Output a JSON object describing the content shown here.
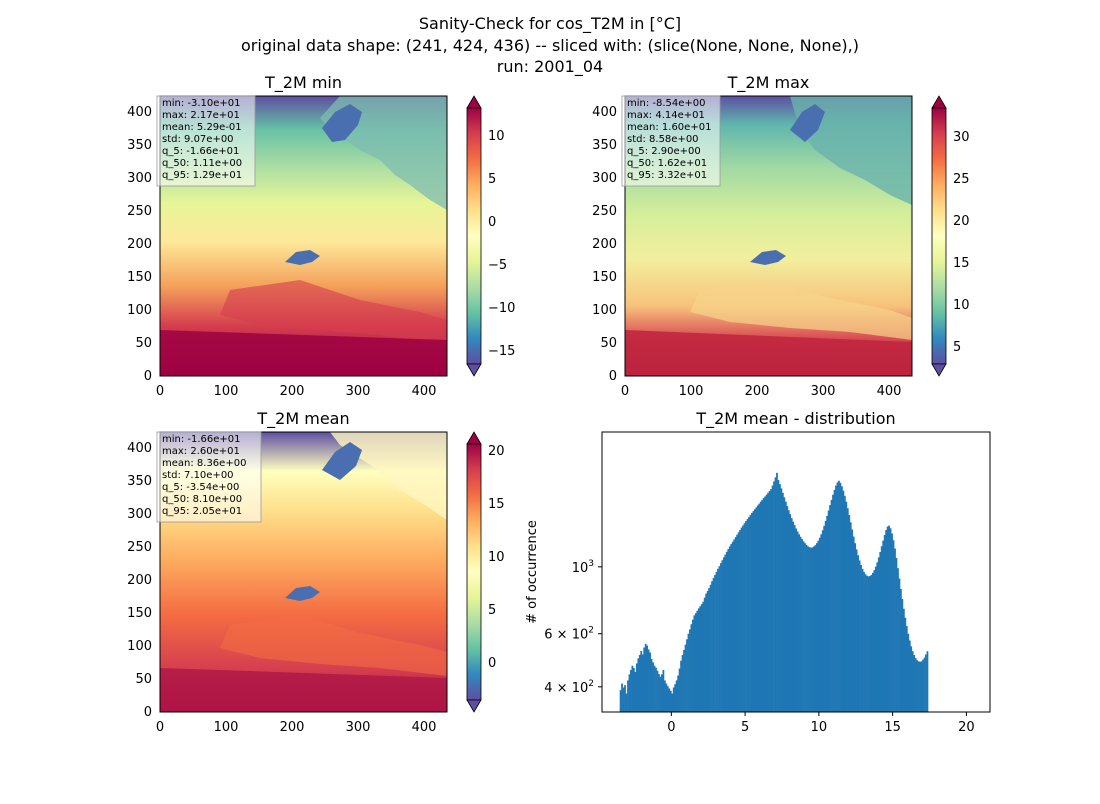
{
  "figure": {
    "suptitle": [
      "Sanity-Check for cos_T2M in [°C]",
      "original data shape: (241, 424, 436) -- sliced with: (slice(None, None, None),)",
      "run: 2001_04"
    ]
  },
  "chart_data": [
    {
      "type": "heatmap",
      "title": "T_2M min",
      "colormap": "Spectral_r",
      "xlim": [
        0,
        436
      ],
      "ylim": [
        0,
        424
      ],
      "x_ticks": [
        "0",
        "100",
        "200",
        "300",
        "400"
      ],
      "y_ticks": [
        "0",
        "50",
        "100",
        "150",
        "200",
        "250",
        "300",
        "350",
        "400"
      ],
      "colorbar_range": [
        -17.5,
        13.5
      ],
      "colorbar_ticks": [
        "−15",
        "−10",
        "−5",
        "0",
        "5",
        "10"
      ],
      "stats": [
        "min: -3.10e+01",
        "max: 2.17e+01",
        "mean: 5.29e-01",
        "std: 9.07e+00",
        "q_5: -1.66e+01",
        "q_50: 1.11e+00",
        "q_95: 1.29e+01"
      ]
    },
    {
      "type": "heatmap",
      "title": "T_2M max",
      "colormap": "Spectral_r",
      "xlim": [
        0,
        436
      ],
      "ylim": [
        0,
        424
      ],
      "x_ticks": [
        "0",
        "100",
        "200",
        "300",
        "400"
      ],
      "y_ticks": [
        "0",
        "50",
        "100",
        "150",
        "200",
        "250",
        "300",
        "350",
        "400"
      ],
      "colorbar_range": [
        2,
        34
      ],
      "colorbar_ticks": [
        "5",
        "10",
        "15",
        "20",
        "25",
        "30"
      ],
      "stats": [
        "min: -8.54e+00",
        "max: 4.14e+01",
        "mean: 1.60e+01",
        "std: 8.58e+00",
        "q_5: 2.90e+00",
        "q_50: 1.62e+01",
        "q_95: 3.32e+01"
      ]
    },
    {
      "type": "heatmap",
      "title": "T_2M mean",
      "colormap": "Spectral_r",
      "xlim": [
        0,
        436
      ],
      "ylim": [
        0,
        424
      ],
      "x_ticks": [
        "0",
        "100",
        "200",
        "300",
        "400"
      ],
      "y_ticks": [
        "0",
        "50",
        "100",
        "150",
        "200",
        "250",
        "300",
        "350",
        "400"
      ],
      "colorbar_range": [
        -3.5,
        21
      ],
      "colorbar_ticks": [
        "0",
        "5",
        "10",
        "15",
        "20"
      ],
      "stats": [
        "min: -1.66e+01",
        "max: 2.60e+01",
        "mean: 8.36e+00",
        "std: 7.10e+00",
        "q_5: -3.54e+00",
        "q_50: 8.10e+00",
        "q_95: 2.05e+01"
      ]
    },
    {
      "type": "bar",
      "title": "T_2M mean - distribution",
      "xlabel": "",
      "ylabel": "# of occurrence",
      "yscale": "log",
      "color": "#1f77b4",
      "xlim": [
        -4.7,
        21.6
      ],
      "ylim": [
        330,
        2800
      ],
      "x_ticks": [
        0,
        5,
        10,
        15,
        20
      ],
      "y_ticks": [
        {
          "value": 1000,
          "base": "10",
          "exp": "3"
        },
        {
          "value": 600,
          "base": "6 × 10",
          "exp": "2"
        },
        {
          "value": 400,
          "base": "4 × 10",
          "exp": "2"
        }
      ],
      "bin_start": -3.5,
      "bin_width": 0.1,
      "values": [
        390,
        410,
        398,
        405,
        380,
        420,
        440,
        455,
        470,
        462,
        448,
        478,
        497,
        510,
        526,
        512,
        540,
        555,
        548,
        532,
        520,
        495,
        482,
        470,
        463,
        452,
        441,
        432,
        440,
        455,
        420,
        410,
        402,
        395,
        388,
        380,
        398,
        408,
        420,
        436,
        460,
        488,
        510,
        530,
        552,
        575,
        600,
        620,
        645,
        668,
        690,
        702,
        715,
        728,
        740,
        752,
        766,
        790,
        815,
        832,
        850,
        872,
        896,
        918,
        940,
        962,
        985,
        1005,
        1028,
        1052,
        1075,
        1098,
        1122,
        1145,
        1168,
        1190,
        1210,
        1232,
        1255,
        1278,
        1302,
        1325,
        1350,
        1372,
        1395,
        1418,
        1440,
        1462,
        1485,
        1508,
        1530,
        1552,
        1575,
        1598,
        1620,
        1645,
        1668,
        1690,
        1712,
        1735,
        1760,
        1785,
        1810,
        1860,
        1920,
        1980,
        2050,
        1940,
        1880,
        1820,
        1760,
        1700,
        1645,
        1590,
        1540,
        1495,
        1450,
        1412,
        1375,
        1340,
        1310,
        1282,
        1258,
        1236,
        1215,
        1198,
        1182,
        1170,
        1162,
        1158,
        1160,
        1168,
        1180,
        1198,
        1220,
        1248,
        1282,
        1322,
        1368,
        1420,
        1476,
        1538,
        1602,
        1668,
        1735,
        1800,
        1860,
        1905,
        1930,
        1900,
        1850,
        1790,
        1720,
        1645,
        1565,
        1485,
        1405,
        1330,
        1260,
        1198,
        1142,
        1092,
        1050,
        1014,
        985,
        962,
        945,
        934,
        930,
        932,
        940,
        955,
        975,
        1002,
        1035,
        1075,
        1120,
        1170,
        1222,
        1275,
        1325,
        1360,
        1370,
        1342,
        1290,
        1225,
        1150,
        1070,
        990,
        915,
        845,
        782,
        726,
        678,
        636,
        600,
        570,
        545,
        525,
        510,
        498,
        490,
        486,
        484,
        486,
        492,
        500,
        512,
        525
      ]
    }
  ]
}
